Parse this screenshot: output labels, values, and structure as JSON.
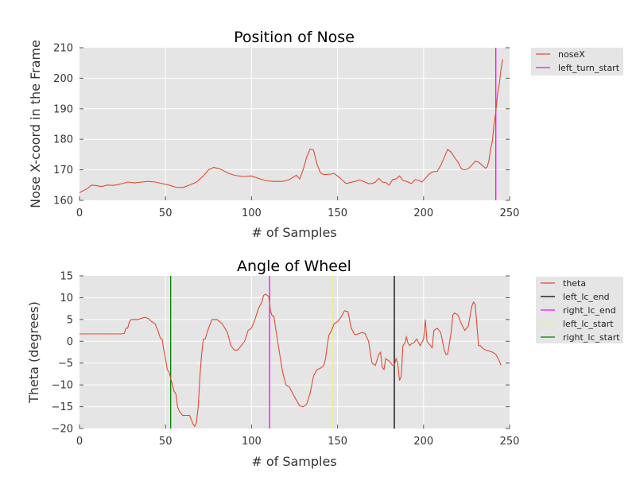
{
  "chart_data": [
    {
      "type": "line",
      "title": "Position of Nose",
      "xlabel": "# of Samples",
      "ylabel": "Nose X-coord in the Frame",
      "xlim": [
        0,
        250
      ],
      "ylim": [
        160,
        210
      ],
      "xticks": [
        "0",
        "50",
        "100",
        "150",
        "200",
        "250"
      ],
      "yticks": [
        "160",
        "170",
        "180",
        "190",
        "200",
        "210"
      ],
      "grid": true,
      "legend_position": "outside-right",
      "series": [
        {
          "name": "noseX",
          "color": "#e24a33",
          "points": [
            [
              0,
              162.5
            ],
            [
              5,
              164
            ],
            [
              7,
              165
            ],
            [
              10,
              164.8
            ],
            [
              13,
              164.5
            ],
            [
              16,
              165
            ],
            [
              20,
              164.9
            ],
            [
              25,
              165.5
            ],
            [
              28,
              166
            ],
            [
              32,
              165.7
            ],
            [
              36,
              166
            ],
            [
              40,
              166.2
            ],
            [
              44,
              166
            ],
            [
              48,
              165.5
            ],
            [
              52,
              165
            ],
            [
              56,
              164.3
            ],
            [
              60,
              164.2
            ],
            [
              64,
              165
            ],
            [
              68,
              166
            ],
            [
              72,
              168
            ],
            [
              75,
              170
            ],
            [
              78,
              170.8
            ],
            [
              82,
              170.2
            ],
            [
              86,
              169
            ],
            [
              90,
              168.2
            ],
            [
              95,
              167.8
            ],
            [
              100,
              168
            ],
            [
              104,
              167.2
            ],
            [
              108,
              166.5
            ],
            [
              112,
              166.2
            ],
            [
              118,
              166.2
            ],
            [
              122,
              166.8
            ],
            [
              126,
              168.2
            ],
            [
              128,
              167
            ],
            [
              130,
              170
            ],
            [
              132,
              174
            ],
            [
              134,
              176.8
            ],
            [
              136,
              176.5
            ],
            [
              138,
              172
            ],
            [
              140,
              169
            ],
            [
              142,
              168.4
            ],
            [
              146,
              168.6
            ],
            [
              148,
              168.8
            ],
            [
              150,
              168
            ],
            [
              152,
              167
            ],
            [
              155,
              165.5
            ],
            [
              160,
              166.2
            ],
            [
              163,
              166.7
            ],
            [
              165,
              166.2
            ],
            [
              168,
              165.5
            ],
            [
              170,
              165.5
            ],
            [
              172,
              166
            ],
            [
              174,
              167.2
            ],
            [
              176,
              166
            ],
            [
              178,
              165.8
            ],
            [
              180,
              165
            ],
            [
              182,
              166.8
            ],
            [
              184,
              167
            ],
            [
              186,
              168
            ],
            [
              188,
              166.5
            ],
            [
              190,
              166.2
            ],
            [
              193,
              165.5
            ],
            [
              195,
              166.8
            ],
            [
              197,
              166.5
            ],
            [
              199,
              166
            ],
            [
              201,
              167.2
            ],
            [
              203,
              168.5
            ],
            [
              205,
              169.3
            ],
            [
              208,
              169.5
            ],
            [
              210,
              171.5
            ],
            [
              212,
              174
            ],
            [
              214,
              176.7
            ],
            [
              216,
              175.8
            ],
            [
              218,
              174
            ],
            [
              220,
              172.5
            ],
            [
              222,
              170.3
            ],
            [
              224,
              170
            ],
            [
              226,
              170.4
            ],
            [
              228,
              171.5
            ],
            [
              230,
              172.8
            ],
            [
              232,
              172.5
            ],
            [
              234,
              171.5
            ],
            [
              236,
              170.5
            ],
            [
              237,
              171
            ],
            [
              238,
              173
            ],
            [
              239,
              177
            ],
            [
              240,
              179.5
            ],
            [
              241,
              185
            ],
            [
              242,
              189
            ],
            [
              243,
              195
            ],
            [
              244,
              198
            ],
            [
              245,
              203
            ],
            [
              246,
              206.2
            ]
          ]
        }
      ],
      "vlines": [
        {
          "name": "left_turn_start",
          "x": 242,
          "color": "#ff00ff"
        }
      ]
    },
    {
      "type": "line",
      "title": "Angle of Wheel",
      "xlabel": "# of Samples",
      "ylabel": "Theta (degrees)",
      "xlim": [
        0,
        250
      ],
      "ylim": [
        -20,
        15
      ],
      "xticks": [
        "0",
        "50",
        "100",
        "150",
        "200",
        "250"
      ],
      "yticks": [
        "−20",
        "−15",
        "−10",
        "−5",
        "0",
        "5",
        "10",
        "15"
      ],
      "grid": true,
      "legend_position": "outside-right",
      "series": [
        {
          "name": "theta",
          "color": "#e24a33",
          "points": [
            [
              0,
              1.7
            ],
            [
              10,
              1.7
            ],
            [
              20,
              1.7
            ],
            [
              24,
              1.7
            ],
            [
              26,
              1.8
            ],
            [
              27,
              3
            ],
            [
              28,
              3
            ],
            [
              29,
              4.5
            ],
            [
              30,
              5
            ],
            [
              34,
              5
            ],
            [
              38,
              5.5
            ],
            [
              40,
              5.2
            ],
            [
              42,
              4.5
            ],
            [
              44,
              4
            ],
            [
              46,
              2
            ],
            [
              47,
              0.7
            ],
            [
              48,
              0.5
            ],
            [
              49,
              -2
            ],
            [
              50,
              -4
            ],
            [
              51,
              -6.5
            ],
            [
              52,
              -7
            ],
            [
              54,
              -10
            ],
            [
              55,
              -11.5
            ],
            [
              56,
              -12
            ],
            [
              57,
              -15
            ],
            [
              58,
              -16
            ],
            [
              60,
              -17
            ],
            [
              62,
              -17
            ],
            [
              64,
              -17
            ],
            [
              66,
              -19
            ],
            [
              67,
              -19.5
            ],
            [
              68,
              -18.5
            ],
            [
              69,
              -15
            ],
            [
              70,
              -8
            ],
            [
              71,
              -3
            ],
            [
              72,
              0.5
            ],
            [
              73,
              0.5
            ],
            [
              75,
              3
            ],
            [
              77,
              5
            ],
            [
              80,
              5
            ],
            [
              83,
              4
            ],
            [
              86,
              2
            ],
            [
              88,
              -1
            ],
            [
              90,
              -2
            ],
            [
              92,
              -2
            ],
            [
              94,
              -1
            ],
            [
              96,
              0
            ],
            [
              98,
              2.5
            ],
            [
              100,
              3
            ],
            [
              102,
              5
            ],
            [
              104,
              7.5
            ],
            [
              106,
              9
            ],
            [
              107,
              10.5
            ],
            [
              108,
              10.8
            ],
            [
              110,
              10.3
            ],
            [
              111,
              7
            ],
            [
              112,
              5.8
            ],
            [
              113,
              5.8
            ],
            [
              114,
              3
            ],
            [
              116,
              -2
            ],
            [
              118,
              -7
            ],
            [
              120,
              -10
            ],
            [
              122,
              -10.5
            ],
            [
              124,
              -12
            ],
            [
              126,
              -13.5
            ],
            [
              128,
              -14.8
            ],
            [
              130,
              -15
            ],
            [
              132,
              -14.5
            ],
            [
              134,
              -12
            ],
            [
              136,
              -8
            ],
            [
              138,
              -6.5
            ],
            [
              140,
              -6.2
            ],
            [
              142,
              -5.5
            ],
            [
              143,
              -4
            ],
            [
              144,
              -1
            ],
            [
              145,
              1.5
            ],
            [
              146,
              2
            ],
            [
              148,
              4
            ],
            [
              150,
              4.5
            ],
            [
              152,
              5.5
            ],
            [
              154,
              7
            ],
            [
              156,
              6.8
            ],
            [
              158,
              3
            ],
            [
              160,
              1.5
            ],
            [
              162,
              1.7
            ],
            [
              164,
              2
            ],
            [
              166,
              1.8
            ],
            [
              168,
              0
            ],
            [
              170,
              -5
            ],
            [
              172,
              -5.5
            ],
            [
              174,
              -3
            ],
            [
              175,
              -2.5
            ],
            [
              176,
              -6
            ],
            [
              177,
              -6.5
            ],
            [
              178,
              -4
            ],
            [
              180,
              -4.5
            ],
            [
              182,
              -5.5
            ],
            [
              183,
              -5.5
            ],
            [
              184,
              -4
            ],
            [
              185,
              -5
            ],
            [
              186,
              -9
            ],
            [
              187,
              -8
            ],
            [
              188,
              -1
            ],
            [
              189,
              -0.5
            ],
            [
              190,
              1
            ],
            [
              191,
              -0.5
            ],
            [
              192,
              -1
            ],
            [
              193,
              -0.5
            ],
            [
              194,
              -0.5
            ],
            [
              196,
              0.5
            ],
            [
              198,
              -1
            ],
            [
              200,
              0.5
            ],
            [
              201,
              5
            ],
            [
              202,
              0
            ],
            [
              204,
              -1
            ],
            [
              205,
              -1.5
            ],
            [
              206,
              2.5
            ],
            [
              208,
              3
            ],
            [
              210,
              2
            ],
            [
              212,
              -2
            ],
            [
              213,
              -3
            ],
            [
              214,
              -3
            ],
            [
              216,
              2
            ],
            [
              217,
              6
            ],
            [
              218,
              6.5
            ],
            [
              220,
              6
            ],
            [
              222,
              4
            ],
            [
              224,
              2.5
            ],
            [
              226,
              3.5
            ],
            [
              228,
              8
            ],
            [
              229,
              9
            ],
            [
              230,
              8.5
            ],
            [
              232,
              -1
            ],
            [
              233,
              -1
            ],
            [
              234,
              -1.5
            ],
            [
              236,
              -2
            ],
            [
              238,
              -2.2
            ],
            [
              240,
              -2.5
            ],
            [
              242,
              -3
            ],
            [
              244,
              -4.5
            ],
            [
              245,
              -5.5
            ]
          ]
        }
      ],
      "vlines": [
        {
          "name": "left_lc_end",
          "x": 183,
          "color": "#000000"
        },
        {
          "name": "right_lc_end",
          "x": 110.5,
          "color": "#ff00ff"
        },
        {
          "name": "left_lc_start",
          "x": 147.5,
          "color": "#ffff00"
        },
        {
          "name": "right_lc_start",
          "x": 53,
          "color": "#008000"
        }
      ]
    }
  ]
}
